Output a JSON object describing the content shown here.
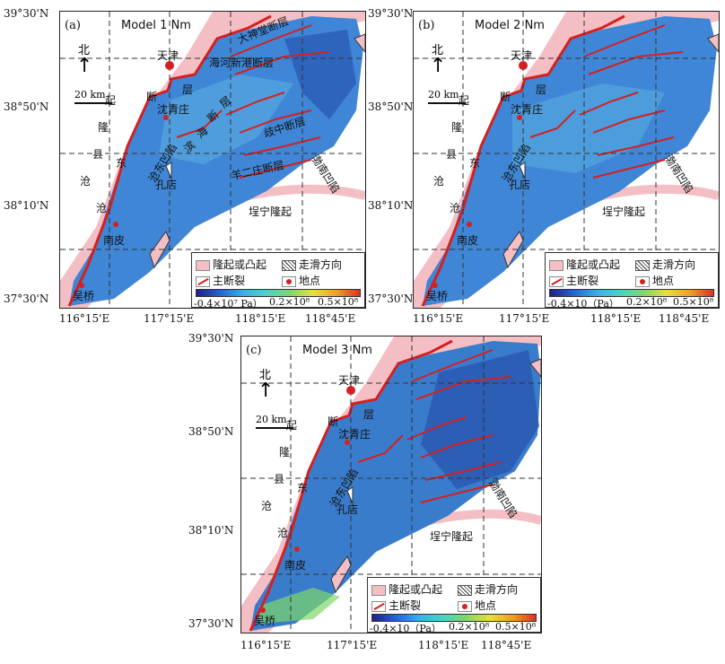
{
  "panels": [
    {
      "tag": "(a)",
      "model": "Model 1 Nm",
      "faults": [
        "大神堂断层",
        "海河新港断层",
        "歧中断层",
        "羊二庄断层",
        "断",
        "层"
      ],
      "fault_text_extra": [
        "滨",
        "海",
        "断",
        "层"
      ]
    },
    {
      "tag": "(b)",
      "model": "Model 2 Nm"
    },
    {
      "tag": "(c)",
      "model": "Model 3 Nm"
    }
  ],
  "axes": {
    "lat_top": "39°30'N",
    "lat_mid": "38°50'N",
    "lat_low": "38°10'N",
    "lat_bot": "37°30'N",
    "lon": [
      "116°15'E",
      "117°15'E",
      "118°15'E",
      "118°45'E"
    ]
  },
  "places": {
    "tianjin": "天津",
    "shennanzhuang": "沈青庄",
    "kongdian": "孔店",
    "nanpi": "南皮",
    "wuqiao": "吴桥"
  },
  "regions": {
    "bohai_sag": "渤南凹陷",
    "maining_uplift": "埕宁隆起",
    "cangdong_sag": "沧东凹陷",
    "cangxian_uplift": [
      "沧",
      "县",
      "隆",
      "起"
    ],
    "cangdong_fault_chars": [
      "断",
      "层"
    ],
    "cangdong_vertical": [
      "沧",
      "东"
    ]
  },
  "north": "北",
  "scale": "20 km",
  "legend": {
    "uplift": "隆起或凸起",
    "slip": "走滑方向",
    "fault": "主断裂",
    "place": "地点",
    "cbar_min": "-0.4×10⁷ Pa）",
    "cbar_mid": "0.2×10⁸",
    "cbar_max": "0.5×10⁸",
    "cbar_min_b": "-0.4×10（Pa）"
  },
  "colors": {
    "uplift": "#f4bfc4",
    "fault": "#d42020",
    "field_dark": "#2a56b0",
    "field_mid": "#3f86d6",
    "field_light": "#5aaee0"
  }
}
